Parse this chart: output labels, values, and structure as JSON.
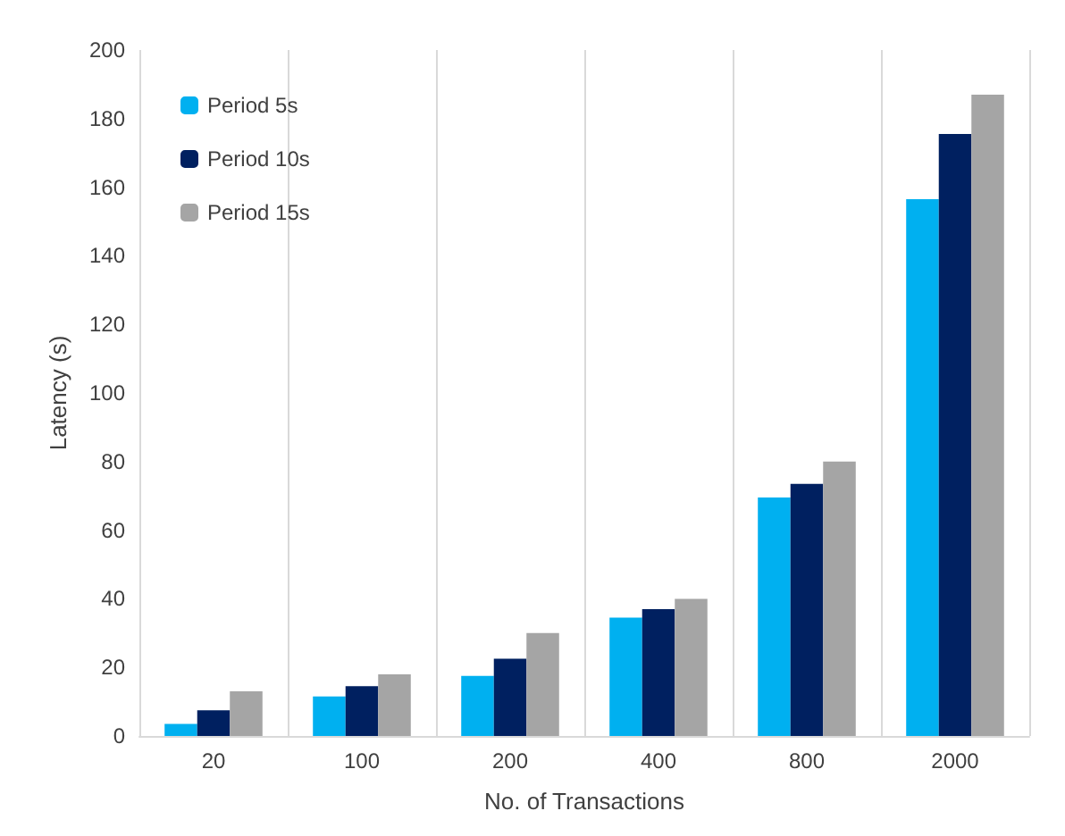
{
  "chart_data": {
    "type": "bar",
    "xlabel": "No. of Transactions",
    "ylabel": "Latency (s)",
    "categories": [
      "20",
      "100",
      "200",
      "400",
      "800",
      "2000"
    ],
    "series": [
      {
        "name": "Period 5s",
        "color": "#00b0f0",
        "values": [
          3.5,
          11.5,
          17.5,
          34.5,
          69.5,
          156.5
        ]
      },
      {
        "name": "Period 10s",
        "color": "#002060",
        "values": [
          7.5,
          14.5,
          22.5,
          37,
          73.5,
          175.5
        ]
      },
      {
        "name": "Period 15s",
        "color": "#a5a5a5",
        "values": [
          13,
          18,
          30,
          40,
          80,
          187
        ]
      }
    ],
    "ylim": [
      0,
      200
    ],
    "yticks": [
      0,
      20,
      40,
      60,
      80,
      100,
      120,
      140,
      160,
      180,
      200
    ],
    "grid": "x",
    "legend": "top left"
  }
}
